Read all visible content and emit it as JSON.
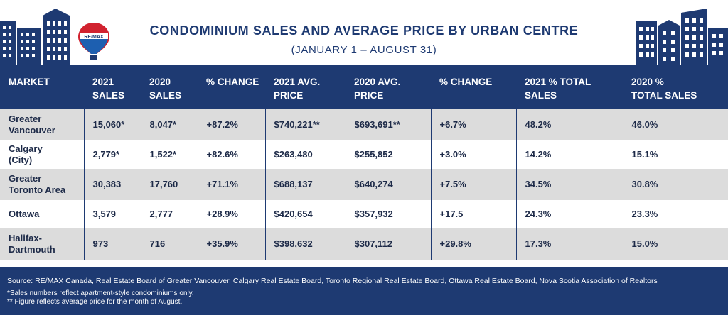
{
  "header": {
    "title": "CONDOMINIUM SALES AND AVERAGE PRICE BY URBAN CENTRE",
    "subtitle": "(JANUARY 1 – AUGUST 31)",
    "logo_text": "RE/MAX",
    "colors": {
      "navy": "#1e3a72",
      "red": "#d1222f",
      "blue": "#1d5fb0"
    }
  },
  "table": {
    "columns": [
      [
        "MARKET"
      ],
      [
        "2021",
        "SALES"
      ],
      [
        "2020",
        "SALES"
      ],
      [
        "% CHANGE"
      ],
      [
        "2021 AVG.",
        "PRICE"
      ],
      [
        "2020 AVG.",
        "PRICE"
      ],
      [
        "% CHANGE"
      ],
      [
        "2021 % TOTAL",
        "SALES"
      ],
      [
        "2020 %",
        "TOTAL SALES"
      ]
    ],
    "rows": [
      {
        "market": [
          "Greater",
          "Vancouver"
        ],
        "cells": [
          "15,060*",
          "8,047*",
          "+87.2%",
          "$740,221**",
          "$693,691**",
          "+6.7%",
          "48.2%",
          "46.0%"
        ]
      },
      {
        "market": [
          "Calgary",
          "(City)"
        ],
        "cells": [
          "2,779*",
          "1,522*",
          "+82.6%",
          "$263,480",
          "$255,852",
          "+3.0%",
          "14.2%",
          "15.1%"
        ]
      },
      {
        "market": [
          "Greater",
          "Toronto Area"
        ],
        "cells": [
          "30,383",
          "17,760",
          "+71.1%",
          "$688,137",
          "$640,274",
          "+7.5%",
          "34.5%",
          "30.8%"
        ]
      },
      {
        "market": [
          "Ottawa"
        ],
        "cells": [
          "3,579",
          "2,777",
          "+28.9%",
          "$420,654",
          "$357,932",
          "+17.5",
          "24.3%",
          "23.3%"
        ]
      },
      {
        "market": [
          "Halifax-",
          "Dartmouth"
        ],
        "cells": [
          "973",
          "716",
          "+35.9%",
          "$398,632",
          "$307,112",
          "+29.8%",
          "17.3%",
          "15.0%"
        ]
      }
    ]
  },
  "footer": {
    "source": "Source:  RE/MAX Canada, Real Estate Board of Greater Vancouver, Calgary Real Estate Board, Toronto Regional Real Estate Board, Ottawa Real Estate Board, Nova Scotia Association of Realtors",
    "note1": "*Sales numbers reflect apartment-style condominiums only.",
    "note2": "** Figure reflects average price for the month of August."
  }
}
